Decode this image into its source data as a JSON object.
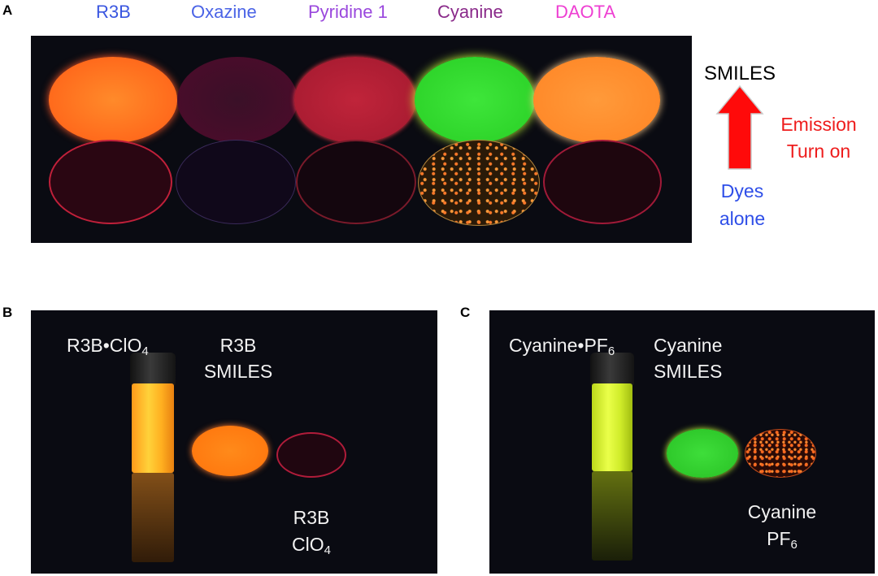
{
  "panels": {
    "a": "A",
    "b": "B",
    "c": "C"
  },
  "panel_a": {
    "dyes": [
      {
        "label": "R3B",
        "color": "#3a56e0"
      },
      {
        "label": "Oxazine",
        "color": "#4a63e6"
      },
      {
        "label": "Pyridine 1",
        "color": "#9a48dd"
      },
      {
        "label": "Cyanine",
        "color": "#8a2a8a"
      },
      {
        "label": "DAOTA",
        "color": "#ee3fd2"
      }
    ],
    "top_row_label": "SMILES",
    "arrow_label_1": "Emission",
    "arrow_label_2": "Turn on",
    "bottom_row_label_1": "Dyes",
    "bottom_row_label_2": "alone"
  },
  "panel_b": {
    "vial_label": "R3B•ClO",
    "vial_label_sub": "4",
    "smiles_label_1": "R3B",
    "smiles_label_2": "SMILES",
    "salt_label_1": "R3B",
    "salt_label_2": "ClO",
    "salt_label_sub": "4"
  },
  "panel_c": {
    "vial_label": "Cyanine•PF",
    "vial_label_sub": "6",
    "smiles_label_1": "Cyanine",
    "smiles_label_2": "SMILES",
    "salt_label_1": "Cyanine",
    "salt_label_2": "PF",
    "salt_label_sub": "6"
  }
}
